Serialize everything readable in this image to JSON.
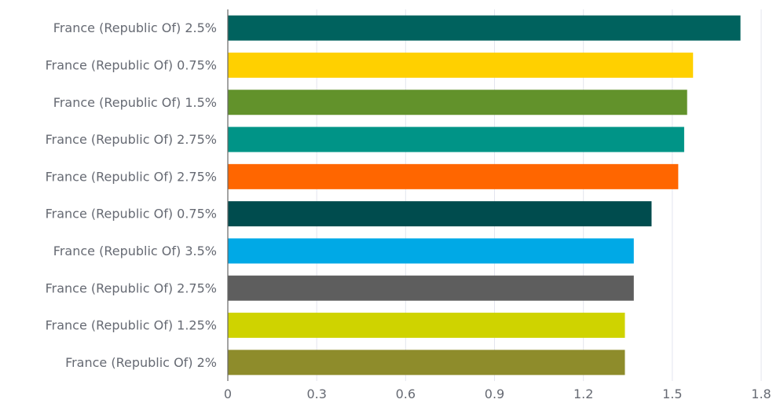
{
  "chart_data": {
    "type": "bar",
    "orientation": "horizontal",
    "categories": [
      "France (Republic Of) 2.5%",
      "France (Republic Of) 0.75%",
      "France (Republic Of) 1.5%",
      "France (Republic Of) 2.75%",
      "France (Republic Of) 2.75%",
      "France (Republic Of) 0.75%",
      "France (Republic Of) 3.5%",
      "France (Republic Of) 2.75%",
      "France (Republic Of) 1.25%",
      "France (Republic Of) 2%"
    ],
    "values": [
      1.73,
      1.57,
      1.55,
      1.54,
      1.52,
      1.43,
      1.37,
      1.37,
      1.34,
      1.34
    ],
    "bar_colors": [
      "#00625e",
      "#ffd000",
      "#62922b",
      "#009487",
      "#ff6600",
      "#004c4e",
      "#00a9e6",
      "#5e5e5e",
      "#cfd300",
      "#8e8c2b"
    ],
    "xlim": [
      0,
      1.8
    ],
    "x_ticks": [
      "0",
      "0.3",
      "0.6",
      "0.9",
      "1.2",
      "1.5",
      "1.8"
    ],
    "grid": "vertical",
    "title": "",
    "xlabel": "",
    "ylabel": ""
  }
}
